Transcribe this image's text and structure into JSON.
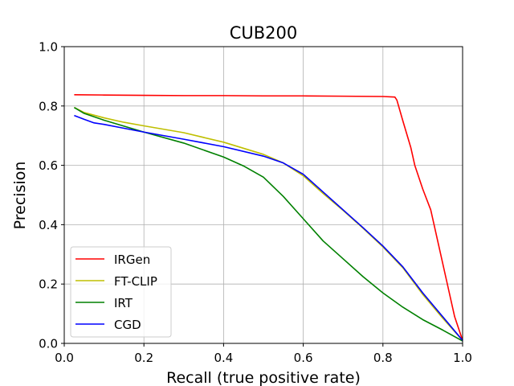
{
  "chart_data": {
    "type": "line",
    "title": "CUB200",
    "xlabel": "Recall (true positive rate)",
    "ylabel": "Precision",
    "xlim": [
      0.0,
      1.0
    ],
    "ylim": [
      0.0,
      1.0
    ],
    "xticks": [
      0.0,
      0.2,
      0.4,
      0.6,
      0.8,
      1.0
    ],
    "xtick_labels": [
      "0.0",
      "0.2",
      "0.4",
      "0.6",
      "0.8",
      "1.0"
    ],
    "yticks": [
      0.0,
      0.2,
      0.4,
      0.6,
      0.8,
      1.0
    ],
    "ytick_labels": [
      "0.0",
      "0.2",
      "0.4",
      "0.6",
      "0.8",
      "1.0"
    ],
    "grid": true,
    "legend_position": "lower-left",
    "series": [
      {
        "name": "IRGen",
        "color": "#ff0000",
        "points": [
          [
            0.025,
            0.838
          ],
          [
            0.1,
            0.837
          ],
          [
            0.2,
            0.836
          ],
          [
            0.3,
            0.835
          ],
          [
            0.4,
            0.835
          ],
          [
            0.5,
            0.834
          ],
          [
            0.6,
            0.834
          ],
          [
            0.7,
            0.833
          ],
          [
            0.8,
            0.832
          ],
          [
            0.83,
            0.83
          ],
          [
            0.835,
            0.82
          ],
          [
            0.85,
            0.75
          ],
          [
            0.87,
            0.66
          ],
          [
            0.88,
            0.6
          ],
          [
            0.9,
            0.52
          ],
          [
            0.92,
            0.45
          ],
          [
            0.94,
            0.33
          ],
          [
            0.96,
            0.21
          ],
          [
            0.98,
            0.09
          ],
          [
            1.0,
            0.01
          ]
        ]
      },
      {
        "name": "FT-CLIP",
        "color": "#bfbf00",
        "points": [
          [
            0.025,
            0.795
          ],
          [
            0.05,
            0.778
          ],
          [
            0.1,
            0.76
          ],
          [
            0.15,
            0.745
          ],
          [
            0.2,
            0.733
          ],
          [
            0.3,
            0.71
          ],
          [
            0.4,
            0.678
          ],
          [
            0.5,
            0.637
          ],
          [
            0.55,
            0.608
          ],
          [
            0.6,
            0.565
          ],
          [
            0.65,
            0.505
          ],
          [
            0.7,
            0.448
          ],
          [
            0.75,
            0.388
          ],
          [
            0.8,
            0.325
          ],
          [
            0.85,
            0.255
          ],
          [
            0.9,
            0.165
          ],
          [
            0.95,
            0.085
          ],
          [
            1.0,
            0.01
          ]
        ]
      },
      {
        "name": "IRT",
        "color": "#008000",
        "points": [
          [
            0.025,
            0.795
          ],
          [
            0.05,
            0.775
          ],
          [
            0.1,
            0.752
          ],
          [
            0.15,
            0.732
          ],
          [
            0.2,
            0.712
          ],
          [
            0.3,
            0.675
          ],
          [
            0.4,
            0.628
          ],
          [
            0.45,
            0.598
          ],
          [
            0.5,
            0.56
          ],
          [
            0.55,
            0.495
          ],
          [
            0.6,
            0.42
          ],
          [
            0.65,
            0.345
          ],
          [
            0.7,
            0.285
          ],
          [
            0.75,
            0.225
          ],
          [
            0.8,
            0.17
          ],
          [
            0.85,
            0.122
          ],
          [
            0.9,
            0.08
          ],
          [
            0.95,
            0.045
          ],
          [
            1.0,
            0.008
          ]
        ]
      },
      {
        "name": "CGD",
        "color": "#0000ff",
        "points": [
          [
            0.025,
            0.768
          ],
          [
            0.05,
            0.755
          ],
          [
            0.075,
            0.743
          ],
          [
            0.1,
            0.738
          ],
          [
            0.15,
            0.725
          ],
          [
            0.2,
            0.712
          ],
          [
            0.3,
            0.688
          ],
          [
            0.4,
            0.663
          ],
          [
            0.5,
            0.631
          ],
          [
            0.55,
            0.608
          ],
          [
            0.6,
            0.57
          ],
          [
            0.65,
            0.51
          ],
          [
            0.7,
            0.45
          ],
          [
            0.75,
            0.39
          ],
          [
            0.8,
            0.328
          ],
          [
            0.85,
            0.258
          ],
          [
            0.9,
            0.17
          ],
          [
            0.95,
            0.09
          ],
          [
            1.0,
            0.01
          ]
        ]
      }
    ]
  }
}
